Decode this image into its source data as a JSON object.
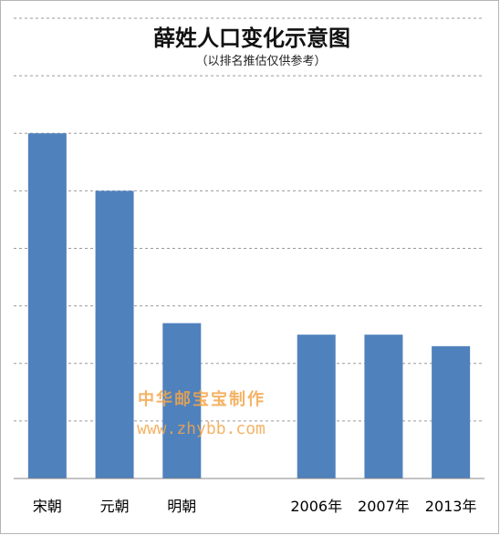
{
  "chart_data": {
    "type": "bar",
    "title": "薛姓人口变化示意图",
    "subtitle": "（以排名推估仅供参考）",
    "categories": [
      "宋朝",
      "元朝",
      "明朝",
      "",
      "2006年",
      "2007年",
      "2013年"
    ],
    "values": [
      6,
      5,
      2.7,
      null,
      2.5,
      2.5,
      2.3
    ],
    "ylim": [
      0,
      8
    ],
    "grid": true,
    "bar_color": "#4f81bd"
  },
  "watermark": {
    "line1": "中华邮宝宝制作",
    "line2": "www.zhybb.com"
  }
}
